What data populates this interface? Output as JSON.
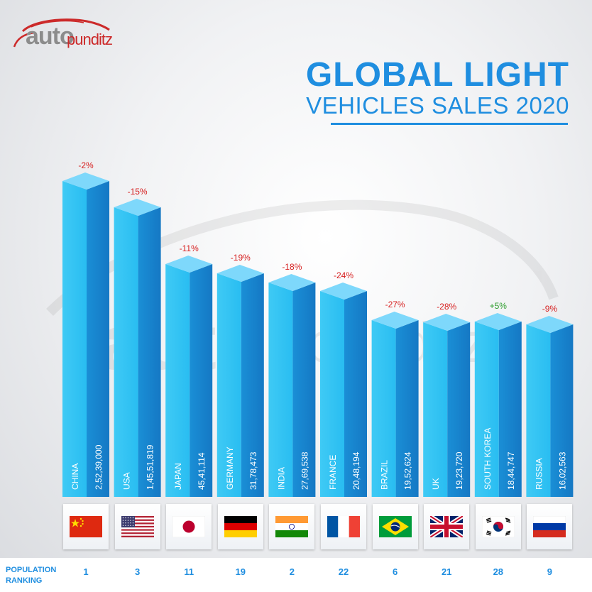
{
  "brand": {
    "part1": "auto",
    "part2": "punditz"
  },
  "header": {
    "title_line1": "GLOBAL LIGHT",
    "title_line2": "VEHICLES SALES 2020"
  },
  "colors": {
    "bar_front": "#29bdf1",
    "bar_side": "#1a8fd6",
    "bar_top": "#7ed8fb",
    "title": "#1f8ee0",
    "negative_change": "#d62020",
    "positive_change": "#2e9e2e"
  },
  "population_ranking_label": "POPULATION\nRANKING",
  "chart_data": {
    "type": "bar",
    "categories": [
      "CHINA",
      "USA",
      "JAPAN",
      "GERMANY",
      "INDIA",
      "FRANCE",
      "BRAZIL",
      "UK",
      "SOUTH KOREA",
      "RUSSIA"
    ],
    "values": [
      25239000,
      14551819,
      4541114,
      3178473,
      2769538,
      2048194,
      1952624,
      1923720,
      1844747,
      1602563
    ],
    "value_labels": [
      "2,52,39,000",
      "1,45,51,819",
      "45,41,114",
      "31,78,473",
      "27,69,538",
      "20,48,194",
      "19,52,624",
      "19,23,720",
      "18,44,747",
      "16,02,563"
    ],
    "change_labels": [
      "-2%",
      "-15%",
      "-11%",
      "-19%",
      "-18%",
      "-24%",
      "-27%",
      "-28%",
      "+5%",
      "-9%"
    ],
    "change_values": [
      -2,
      -15,
      -11,
      -19,
      -18,
      -24,
      -27,
      -28,
      5,
      -9
    ],
    "population_ranking": [
      "1",
      "3",
      "11",
      "19",
      "2",
      "22",
      "6",
      "21",
      "28",
      "9"
    ],
    "flag_icons": [
      "china-flag-icon",
      "usa-flag-icon",
      "japan-flag-icon",
      "germany-flag-icon",
      "india-flag-icon",
      "france-flag-icon",
      "brazil-flag-icon",
      "uk-flag-icon",
      "south-korea-flag-icon",
      "russia-flag-icon"
    ],
    "title": "GLOBAL LIGHT VEHICLES SALES 2020",
    "xlabel": "",
    "ylabel": "",
    "grid": false,
    "legend": "none",
    "scale": "not proportional"
  }
}
